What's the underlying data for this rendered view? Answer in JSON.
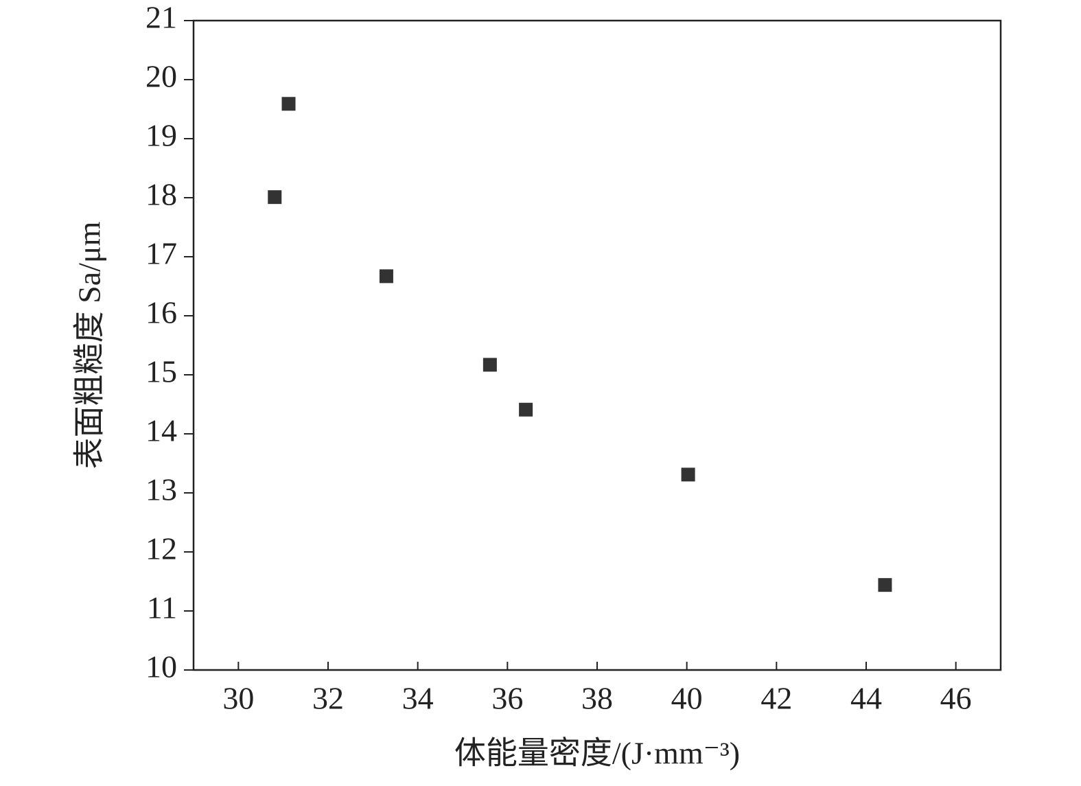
{
  "chart_data": {
    "type": "scatter",
    "x_label": "体能量密度/(J·mm⁻³)",
    "y_label": "表面粗糙度 Sa/μm",
    "x": [
      30.81,
      31.12,
      33.3,
      35.61,
      36.41,
      40.03,
      44.42
    ],
    "values": [
      18.01,
      19.59,
      16.67,
      15.17,
      14.41,
      13.31,
      11.44
    ],
    "color": "#333333",
    "xlim": [
      29,
      47
    ],
    "xticks": [
      30,
      32,
      34,
      36,
      38,
      40,
      42,
      44,
      46
    ],
    "ylim": [
      10,
      21
    ],
    "yticks": [
      10,
      11,
      12,
      13,
      14,
      15,
      16,
      17,
      18,
      19,
      20,
      21
    ],
    "grid": false
  }
}
